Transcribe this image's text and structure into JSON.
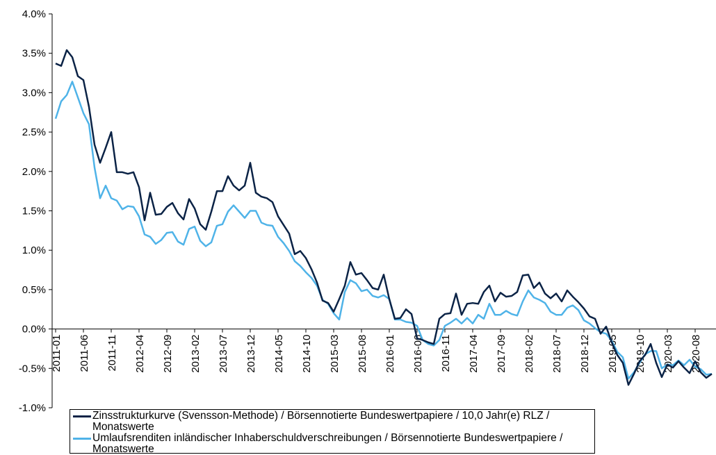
{
  "chart_data": {
    "type": "line",
    "categories": [
      "2011-01",
      null,
      null,
      null,
      null,
      "2011-06",
      null,
      null,
      null,
      null,
      "2011-11",
      null,
      null,
      null,
      null,
      "2012-04",
      null,
      null,
      null,
      null,
      "2012-09",
      null,
      null,
      null,
      null,
      "2013-02",
      null,
      null,
      null,
      null,
      "2013-07",
      null,
      null,
      null,
      null,
      "2013-12",
      null,
      null,
      null,
      null,
      "2014-05",
      null,
      null,
      null,
      null,
      "2014-10",
      null,
      null,
      null,
      null,
      "2015-03",
      null,
      null,
      null,
      null,
      "2015-08",
      null,
      null,
      null,
      null,
      "2016-01",
      null,
      null,
      null,
      null,
      "2016-06",
      null,
      null,
      null,
      null,
      "2016-11",
      null,
      null,
      null,
      null,
      "2017-04",
      null,
      null,
      null,
      null,
      "2017-09",
      null,
      null,
      null,
      null,
      "2018-02",
      null,
      null,
      null,
      null,
      "2018-07",
      null,
      null,
      null,
      null,
      "2018-12",
      null,
      null,
      null,
      null,
      "2019-05",
      null,
      null,
      null,
      null,
      "2019-10",
      null,
      null,
      null,
      null,
      "2020-03",
      null,
      null,
      null,
      null,
      "2020-08",
      null,
      null,
      null
    ],
    "series": [
      {
        "name": "Zinsstrukturkurve (Svensson-Methode) / Börsennotierte Bundeswertpapiere / 10,0 Jahr(e) RLZ / Monatswerte",
        "color": "#0b2346",
        "values": [
          3.37,
          3.34,
          3.54,
          3.45,
          3.21,
          3.16,
          2.82,
          2.34,
          2.11,
          2.3,
          2.5,
          1.99,
          1.99,
          1.97,
          1.99,
          1.8,
          1.38,
          1.73,
          1.45,
          1.46,
          1.55,
          1.6,
          1.47,
          1.39,
          1.65,
          1.53,
          1.33,
          1.26,
          1.49,
          1.75,
          1.75,
          1.94,
          1.82,
          1.76,
          1.82,
          2.11,
          1.73,
          1.68,
          1.66,
          1.61,
          1.43,
          1.32,
          1.21,
          0.95,
          0.99,
          0.9,
          0.76,
          0.59,
          0.36,
          0.33,
          0.22,
          0.38,
          0.55,
          0.85,
          0.69,
          0.71,
          0.62,
          0.52,
          0.5,
          0.69,
          0.38,
          0.13,
          0.14,
          0.25,
          0.19,
          -0.12,
          -0.14,
          -0.17,
          -0.19,
          0.13,
          0.19,
          0.2,
          0.45,
          0.18,
          0.32,
          0.33,
          0.32,
          0.47,
          0.55,
          0.35,
          0.46,
          0.41,
          0.42,
          0.47,
          0.68,
          0.69,
          0.52,
          0.59,
          0.45,
          0.39,
          0.45,
          0.35,
          0.49,
          0.41,
          0.34,
          0.26,
          0.16,
          0.13,
          -0.06,
          0.03,
          -0.17,
          -0.33,
          -0.43,
          -0.71,
          -0.57,
          -0.41,
          -0.33,
          -0.19,
          -0.43,
          -0.61,
          -0.45,
          -0.49,
          -0.41,
          -0.49,
          -0.56,
          -0.41,
          -0.55,
          -0.62,
          -0.57
        ]
      },
      {
        "name": "Umlaufsrenditen inländischer Inhaberschuldverschreibungen / Börsennotierte Bundeswertpapiere / Monatswerte",
        "color": "#4fb3e8",
        "values": [
          2.67,
          2.89,
          2.97,
          3.14,
          2.94,
          2.74,
          2.6,
          2.05,
          1.66,
          1.82,
          1.66,
          1.63,
          1.52,
          1.56,
          1.55,
          1.43,
          1.2,
          1.17,
          1.08,
          1.13,
          1.22,
          1.23,
          1.11,
          1.07,
          1.27,
          1.3,
          1.12,
          1.05,
          1.1,
          1.31,
          1.33,
          1.49,
          1.57,
          1.49,
          1.41,
          1.5,
          1.5,
          1.35,
          1.32,
          1.31,
          1.17,
          1.09,
          0.99,
          0.86,
          0.8,
          0.72,
          0.65,
          0.55,
          0.37,
          0.32,
          0.2,
          0.12,
          0.47,
          0.62,
          0.58,
          0.48,
          0.5,
          0.42,
          0.4,
          0.43,
          0.38,
          0.12,
          0.12,
          0.09,
          0.08,
          0.04,
          -0.14,
          -0.19,
          -0.21,
          -0.14,
          0.04,
          0.08,
          0.13,
          0.07,
          0.14,
          0.07,
          0.18,
          0.13,
          0.32,
          0.18,
          0.18,
          0.23,
          0.19,
          0.17,
          0.35,
          0.49,
          0.4,
          0.37,
          0.33,
          0.22,
          0.18,
          0.18,
          0.27,
          0.3,
          0.24,
          0.11,
          0.07,
          0.01,
          -0.04,
          -0.06,
          -0.15,
          -0.29,
          -0.36,
          -0.63,
          -0.55,
          -0.43,
          -0.32,
          -0.28,
          -0.28,
          -0.5,
          -0.45,
          -0.46,
          -0.4,
          -0.46,
          -0.39,
          -0.48,
          -0.51,
          -0.58,
          -0.57
        ]
      }
    ],
    "ylim": [
      -1.0,
      4.0
    ],
    "yticks": [
      {
        "value": -1.0,
        "label": "-1.0%"
      },
      {
        "value": -0.5,
        "label": "-0.5%"
      },
      {
        "value": 0.0,
        "label": "0.0%"
      },
      {
        "value": 0.5,
        "label": "0.5%"
      },
      {
        "value": 1.0,
        "label": "1.0%"
      },
      {
        "value": 1.5,
        "label": "1.5%"
      },
      {
        "value": 2.0,
        "label": "2.0%"
      },
      {
        "value": 2.5,
        "label": "2.5%"
      },
      {
        "value": 3.0,
        "label": "3.0%"
      },
      {
        "value": 3.5,
        "label": "3.5%"
      },
      {
        "value": 4.0,
        "label": "4.0%"
      }
    ],
    "grid": false
  }
}
